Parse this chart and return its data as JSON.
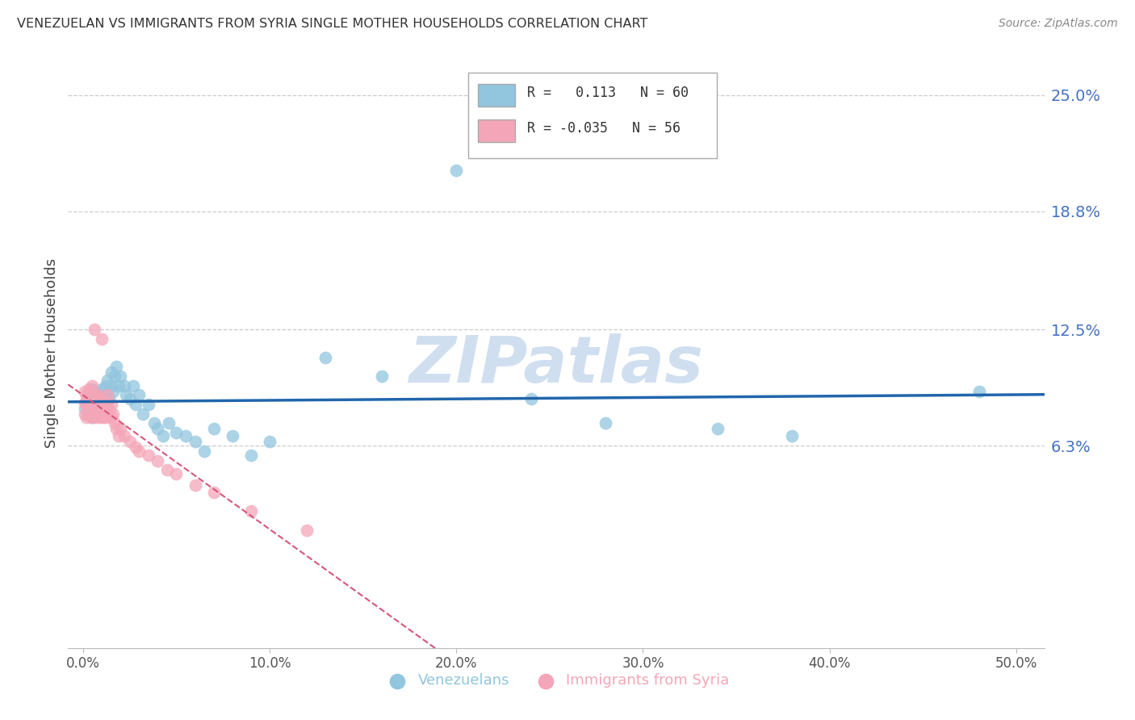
{
  "title": "VENEZUELAN VS IMMIGRANTS FROM SYRIA SINGLE MOTHER HOUSEHOLDS CORRELATION CHART",
  "source": "Source: ZipAtlas.com",
  "ylabel": "Single Mother Households",
  "ytick_values": [
    0.0,
    0.063,
    0.125,
    0.188,
    0.25
  ],
  "ytick_labels": [
    "",
    "6.3%",
    "12.5%",
    "18.8%",
    "25.0%"
  ],
  "ymax": 0.27,
  "ymin": -0.045,
  "xmax": 0.515,
  "xmin": -0.008,
  "xtick_values": [
    0.0,
    0.1,
    0.2,
    0.3,
    0.4,
    0.5
  ],
  "xtick_labels": [
    "0.0%",
    "10.0%",
    "20.0%",
    "30.0%",
    "40.0%",
    "50.0%"
  ],
  "r_venezuelan": 0.113,
  "n_venezuelan": 60,
  "r_syria": -0.035,
  "n_syria": 56,
  "color_venezuelan": "#92C5DE",
  "color_syria": "#F4A6B8",
  "color_line_venezuelan": "#2166AC",
  "color_line_syria": "#D6557A",
  "watermark_color": "#D0DFF0",
  "venezuelan_x": [
    0.001,
    0.002,
    0.003,
    0.003,
    0.004,
    0.004,
    0.005,
    0.005,
    0.005,
    0.006,
    0.006,
    0.007,
    0.007,
    0.008,
    0.008,
    0.009,
    0.009,
    0.01,
    0.01,
    0.011,
    0.011,
    0.012,
    0.013,
    0.013,
    0.014,
    0.015,
    0.015,
    0.016,
    0.017,
    0.018,
    0.019,
    0.02,
    0.022,
    0.023,
    0.025,
    0.027,
    0.028,
    0.03,
    0.032,
    0.035,
    0.038,
    0.04,
    0.043,
    0.046,
    0.05,
    0.055,
    0.06,
    0.065,
    0.07,
    0.08,
    0.09,
    0.1,
    0.13,
    0.16,
    0.2,
    0.24,
    0.28,
    0.34,
    0.38,
    0.48
  ],
  "venezuelan_y": [
    0.083,
    0.087,
    0.08,
    0.09,
    0.085,
    0.092,
    0.078,
    0.086,
    0.093,
    0.082,
    0.089,
    0.085,
    0.092,
    0.08,
    0.088,
    0.083,
    0.09,
    0.085,
    0.093,
    0.082,
    0.088,
    0.095,
    0.09,
    0.098,
    0.088,
    0.095,
    0.102,
    0.092,
    0.1,
    0.105,
    0.095,
    0.1,
    0.095,
    0.09,
    0.088,
    0.095,
    0.085,
    0.09,
    0.08,
    0.085,
    0.075,
    0.072,
    0.068,
    0.075,
    0.07,
    0.068,
    0.065,
    0.06,
    0.072,
    0.068,
    0.058,
    0.065,
    0.11,
    0.1,
    0.21,
    0.088,
    0.075,
    0.072,
    0.068,
    0.092
  ],
  "syria_x": [
    0.001,
    0.001,
    0.001,
    0.002,
    0.002,
    0.002,
    0.003,
    0.003,
    0.003,
    0.004,
    0.004,
    0.004,
    0.005,
    0.005,
    0.005,
    0.005,
    0.006,
    0.006,
    0.006,
    0.007,
    0.007,
    0.007,
    0.008,
    0.008,
    0.008,
    0.009,
    0.009,
    0.01,
    0.01,
    0.01,
    0.011,
    0.011,
    0.012,
    0.012,
    0.013,
    0.013,
    0.014,
    0.015,
    0.015,
    0.016,
    0.017,
    0.018,
    0.019,
    0.02,
    0.022,
    0.025,
    0.028,
    0.03,
    0.035,
    0.04,
    0.045,
    0.05,
    0.06,
    0.07,
    0.09,
    0.12
  ],
  "syria_y": [
    0.08,
    0.086,
    0.092,
    0.078,
    0.085,
    0.09,
    0.082,
    0.088,
    0.093,
    0.079,
    0.085,
    0.092,
    0.082,
    0.088,
    0.078,
    0.095,
    0.083,
    0.09,
    0.125,
    0.082,
    0.088,
    0.078,
    0.085,
    0.09,
    0.082,
    0.078,
    0.085,
    0.082,
    0.088,
    0.12,
    0.078,
    0.085,
    0.082,
    0.078,
    0.085,
    0.09,
    0.082,
    0.078,
    0.085,
    0.08,
    0.075,
    0.072,
    0.068,
    0.072,
    0.068,
    0.065,
    0.062,
    0.06,
    0.058,
    0.055,
    0.05,
    0.048,
    0.042,
    0.038,
    0.028,
    0.018
  ]
}
